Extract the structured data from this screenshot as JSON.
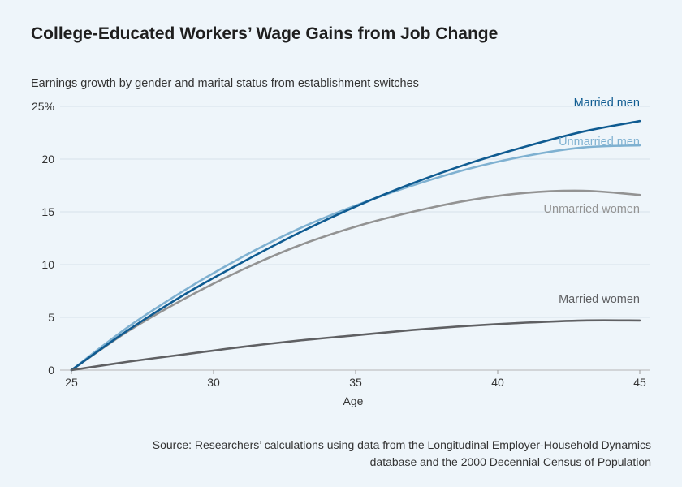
{
  "chart_data": {
    "type": "line",
    "title": "College-Educated Workers’ Wage Gains from Job Change",
    "subtitle": "Earnings growth by gender and marital status from establishment switches",
    "xlabel": "Age",
    "ylabel": "",
    "xlim": [
      25,
      45
    ],
    "ylim": [
      0,
      25
    ],
    "xticks": [
      25,
      30,
      35,
      40,
      45
    ],
    "yticks": [
      0,
      5,
      10,
      15,
      20,
      25
    ],
    "ytick_labels": [
      "0",
      "5",
      "10",
      "15",
      "20",
      "25%"
    ],
    "grid": "horizontal",
    "legend": "direct labels at line ends",
    "x": [
      25,
      27,
      29,
      31,
      33,
      35,
      37,
      39,
      41,
      43,
      45
    ],
    "series": [
      {
        "name": "Married men",
        "color": "#0f5b91",
        "values": [
          0,
          3.8,
          7.2,
          10.2,
          13.0,
          15.5,
          17.7,
          19.6,
          21.2,
          22.6,
          23.6
        ]
      },
      {
        "name": "Unmarried men",
        "color": "#7fb1d1",
        "values": [
          0,
          4.1,
          7.6,
          10.7,
          13.4,
          15.6,
          17.5,
          19.1,
          20.3,
          21.1,
          21.3
        ]
      },
      {
        "name": "Unmarried women",
        "color": "#939393",
        "values": [
          0,
          3.7,
          6.8,
          9.5,
          11.8,
          13.6,
          15.0,
          16.1,
          16.8,
          17.0,
          16.6
        ]
      },
      {
        "name": "Married women",
        "color": "#5f6063",
        "values": [
          0,
          0.8,
          1.5,
          2.2,
          2.8,
          3.3,
          3.8,
          4.2,
          4.5,
          4.7,
          4.7
        ]
      }
    ],
    "source": "Source: Researchers’ calculations using data from the Longitudinal Employer-Household Dynamics database and the 2000 Decennial Census of Population"
  }
}
